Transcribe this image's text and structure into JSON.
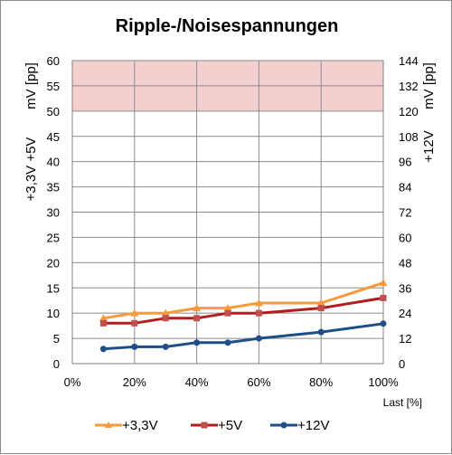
{
  "chart_data": {
    "type": "line",
    "title": "Ripple-/Noisespannungen",
    "xlabel": "Last [%]",
    "ylabel_left": [
      "+3,3V +5V",
      "mV [pp]"
    ],
    "ylabel_right": [
      "+12V",
      "mV [pp]"
    ],
    "x": [
      10,
      20,
      30,
      40,
      50,
      60,
      80,
      100
    ],
    "xlim": [
      0,
      100
    ],
    "xticks": [
      0,
      20,
      40,
      60,
      80,
      100
    ],
    "xtick_labels": [
      "0%",
      "20%",
      "40%",
      "60%",
      "80%",
      "100%"
    ],
    "ylim_left": [
      0,
      60
    ],
    "yticks_left": [
      0,
      5,
      10,
      15,
      20,
      25,
      30,
      35,
      40,
      45,
      50,
      55,
      60
    ],
    "ylim_right": [
      0,
      144
    ],
    "yticks_right": [
      0,
      12,
      24,
      36,
      48,
      60,
      72,
      84,
      96,
      108,
      120,
      132,
      144
    ],
    "limit_band_left": [
      50,
      60
    ],
    "limit_band_color": "#f4cfcf",
    "grid": true,
    "legend_position": "bottom",
    "series": [
      {
        "name": "+3,3V",
        "axis": "left",
        "color": "#f79a3c",
        "marker": "triangle",
        "values": [
          9,
          10,
          10,
          11,
          11,
          12,
          12,
          16
        ]
      },
      {
        "name": "+5V",
        "axis": "left",
        "color": "#b41d1d",
        "marker": "square",
        "values": [
          8,
          8,
          9,
          9,
          10,
          10,
          11,
          13
        ]
      },
      {
        "name": "+12V",
        "axis": "right",
        "color": "#1f4f86",
        "marker": "circle",
        "values": [
          7,
          8,
          8,
          10,
          10,
          12,
          15,
          19
        ]
      }
    ]
  }
}
